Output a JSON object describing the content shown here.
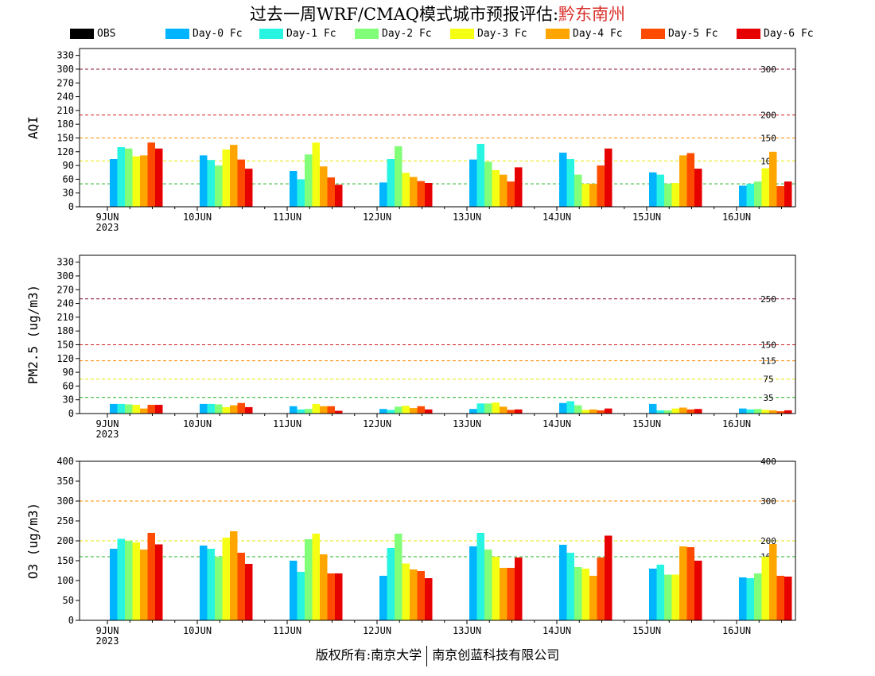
{
  "title": {
    "main": "过去一周WRF/CMAQ模式城市预报评估:",
    "city": "黔东南州"
  },
  "footer": {
    "left": "版权所有:南京大学",
    "right": "南京创蓝科技有限公司"
  },
  "colors": {
    "OBS": "#000000",
    "Day-0 Fc": "#00b4ff",
    "Day-1 Fc": "#28f5e1",
    "Day-2 Fc": "#82ff78",
    "Day-3 Fc": "#f5ff14",
    "Day-4 Fc": "#ffa500",
    "Day-5 Fc": "#ff4b00",
    "Day-6 Fc": "#e60000"
  },
  "legend": [
    "OBS",
    "Day-0 Fc",
    "Day-1 Fc",
    "Day-2 Fc",
    "Day-3 Fc",
    "Day-4 Fc",
    "Day-5 Fc",
    "Day-6 Fc"
  ],
  "chart_data": [
    {
      "type": "bar",
      "ylabel": "AQI",
      "ylim": [
        0,
        345
      ],
      "yticks": [
        0,
        30,
        60,
        90,
        120,
        150,
        180,
        210,
        240,
        270,
        300,
        330
      ],
      "categories": [
        "9JUN",
        "10JUN",
        "11JUN",
        "12JUN",
        "13JUN",
        "14JUN",
        "15JUN",
        "16JUN"
      ],
      "year_label": "2023",
      "thresholds": [
        {
          "value": 50,
          "label": "50",
          "color": "#22b422"
        },
        {
          "value": 100,
          "label": "100",
          "color": "#e6e600"
        },
        {
          "value": 150,
          "label": "150",
          "color": "#ff8c00"
        },
        {
          "value": 200,
          "label": "200",
          "color": "#d21e1e"
        },
        {
          "value": 300,
          "label": "300",
          "color": "#8c1432"
        }
      ],
      "series": [
        {
          "name": "Day-0 Fc",
          "values": [
            104,
            112,
            78,
            53,
            103,
            118,
            75,
            46
          ]
        },
        {
          "name": "Day-1 Fc",
          "values": [
            130,
            102,
            60,
            104,
            137,
            104,
            70,
            50
          ]
        },
        {
          "name": "Day-2 Fc",
          "values": [
            127,
            90,
            114,
            132,
            98,
            70,
            50,
            55
          ]
        },
        {
          "name": "Day-3 Fc",
          "values": [
            110,
            125,
            140,
            74,
            80,
            50,
            52,
            84
          ]
        },
        {
          "name": "Day-4 Fc",
          "values": [
            112,
            135,
            88,
            65,
            70,
            50,
            112,
            120
          ]
        },
        {
          "name": "Day-5 Fc",
          "values": [
            140,
            103,
            64,
            56,
            55,
            90,
            117,
            45
          ]
        },
        {
          "name": "Day-6 Fc",
          "values": [
            127,
            83,
            48,
            52,
            86,
            127,
            83,
            55
          ]
        }
      ]
    },
    {
      "type": "bar",
      "ylabel": "PM2.5 (ug/m3)",
      "ylim": [
        0,
        345
      ],
      "yticks": [
        0,
        30,
        60,
        90,
        120,
        150,
        180,
        210,
        240,
        270,
        300,
        330
      ],
      "categories": [
        "9JUN",
        "10JUN",
        "11JUN",
        "12JUN",
        "13JUN",
        "14JUN",
        "15JUN",
        "16JUN"
      ],
      "year_label": "2023",
      "thresholds": [
        {
          "value": 35,
          "label": "35",
          "color": "#22b422"
        },
        {
          "value": 75,
          "label": "75",
          "color": "#e6e600"
        },
        {
          "value": 115,
          "label": "115",
          "color": "#ff8c00"
        },
        {
          "value": 150,
          "label": "150",
          "color": "#d21e1e"
        },
        {
          "value": 250,
          "label": "250",
          "color": "#8c1432"
        }
      ],
      "series": [
        {
          "name": "Day-0 Fc",
          "values": [
            21,
            21,
            16,
            10,
            10,
            23,
            21,
            11
          ]
        },
        {
          "name": "Day-1 Fc",
          "values": [
            21,
            21,
            9,
            8,
            22,
            27,
            7,
            9
          ]
        },
        {
          "name": "Day-2 Fc",
          "values": [
            20,
            20,
            10,
            15,
            22,
            18,
            7,
            10
          ]
        },
        {
          "name": "Day-3 Fc",
          "values": [
            19,
            14,
            21,
            17,
            24,
            8,
            11,
            8
          ]
        },
        {
          "name": "Day-4 Fc",
          "values": [
            11,
            18,
            16,
            12,
            15,
            9,
            13,
            7
          ]
        },
        {
          "name": "Day-5 Fc",
          "values": [
            19,
            23,
            16,
            16,
            8,
            7,
            9,
            5
          ]
        },
        {
          "name": "Day-6 Fc",
          "values": [
            19,
            14,
            6,
            9,
            9,
            11,
            10,
            7
          ]
        }
      ]
    },
    {
      "type": "bar",
      "ylabel": "O3 (ug/m3)",
      "ylim": [
        0,
        400
      ],
      "yticks": [
        0,
        50,
        100,
        150,
        200,
        250,
        300,
        350,
        400
      ],
      "categories": [
        "9JUN",
        "10JUN",
        "11JUN",
        "12JUN",
        "13JUN",
        "14JUN",
        "15JUN",
        "16JUN"
      ],
      "year_label": "2023",
      "thresholds": [
        {
          "value": 160,
          "label": "160",
          "color": "#22b422"
        },
        {
          "value": 200,
          "label": "200",
          "color": "#e6e600"
        },
        {
          "value": 300,
          "label": "300",
          "color": "#ff8c00"
        },
        {
          "value": 400,
          "label": "400",
          "color": "#d21e1e"
        }
      ],
      "series": [
        {
          "name": "Day-0 Fc",
          "values": [
            180,
            188,
            150,
            112,
            186,
            190,
            130,
            108
          ]
        },
        {
          "name": "Day-1 Fc",
          "values": [
            205,
            180,
            122,
            182,
            220,
            170,
            140,
            106
          ]
        },
        {
          "name": "Day-2 Fc",
          "values": [
            200,
            160,
            204,
            218,
            178,
            134,
            115,
            118
          ]
        },
        {
          "name": "Day-3 Fc",
          "values": [
            196,
            208,
            218,
            143,
            160,
            130,
            115,
            160
          ]
        },
        {
          "name": "Day-4 Fc",
          "values": [
            178,
            224,
            166,
            128,
            132,
            112,
            186,
            192
          ]
        },
        {
          "name": "Day-5 Fc",
          "values": [
            220,
            170,
            118,
            124,
            132,
            158,
            184,
            112
          ]
        },
        {
          "name": "Day-6 Fc",
          "values": [
            191,
            142,
            118,
            106,
            158,
            213,
            150,
            110
          ]
        }
      ]
    }
  ]
}
